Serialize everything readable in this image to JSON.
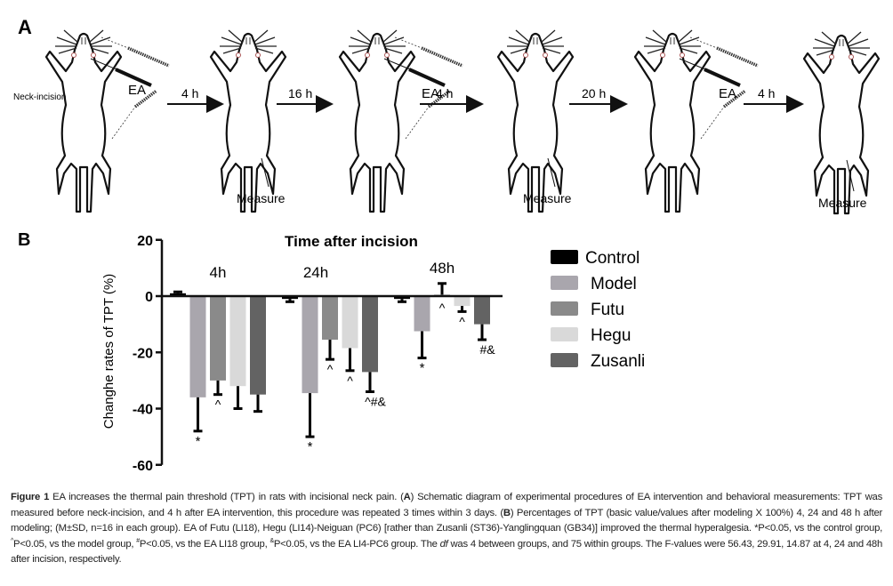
{
  "panel_a": {
    "label": "A",
    "neck_incision": "Neck-incision",
    "ea_label": "EA",
    "measure_label": "Measure",
    "arrows": [
      "4 h",
      "16 h",
      "4 h",
      "20 h",
      "4 h"
    ]
  },
  "panel_b_label": "B",
  "colors": {
    "Control": "#000000",
    "Model": "#a9a6ad",
    "Futu": "#8a8a8a",
    "Hegu": "#d9d9d9",
    "Zusanli": "#636363"
  },
  "chart_data": {
    "type": "bar",
    "title": "Time after incision",
    "ylabel": "Changhe rates of  TPT (%)",
    "xlabel": "",
    "ylim": [
      -60,
      20
    ],
    "yticks": [
      "20",
      "0",
      "-20",
      "-40",
      "-60"
    ],
    "ytick_values": [
      20,
      0,
      -20,
      -40,
      -60
    ],
    "categories": [
      "4h",
      "24h",
      "48h"
    ],
    "legend_position": "right",
    "series": [
      {
        "name": "Control",
        "values": [
          1,
          -1,
          -1
        ],
        "error_end": [
          1.5,
          -2,
          -2
        ],
        "annotations": [
          "",
          "",
          ""
        ]
      },
      {
        "name": "Model",
        "values": [
          -36,
          -34.5,
          -12.5
        ],
        "error_end": [
          -48,
          -50,
          -22
        ],
        "annotations": [
          "*",
          "*",
          "*"
        ]
      },
      {
        "name": "Futu",
        "values": [
          -30,
          -15.5,
          0.5
        ],
        "error_end": [
          -35,
          -22.5,
          4.5
        ],
        "annotations": [
          "^",
          "^",
          "^"
        ]
      },
      {
        "name": "Hegu",
        "values": [
          -32,
          -18.5,
          -3.5
        ],
        "error_end": [
          -40,
          -26.5,
          -5.5
        ],
        "annotations": [
          "",
          "^",
          "^"
        ]
      },
      {
        "name": "Zusanli",
        "values": [
          -35,
          -27,
          -10
        ],
        "error_end": [
          -41,
          -34,
          -15.5
        ],
        "annotations": [
          "",
          "^#&",
          "#&"
        ]
      }
    ]
  },
  "caption": {
    "label": "Figure 1",
    "t1": " EA increases the thermal pain threshold (TPT) in rats with incisional neck pain. (",
    "a": "A",
    "t2": ") Schematic diagram of experimental procedures of EA intervention and behavioral measurements: TPT was measured before neck-incision, and 4 h after EA intervention, this procedure was repeated 3 times within 3 days. (",
    "b": "B",
    "t3": ") Percentages of TPT (basic value/values after modeling X 100%) 4, 24 and 48 h after modeling; (M±SD, n=16 in each group). EA of Futu (LI18), Hegu (LI14)-Neiguan (PC6) [rather than Zusanli (ST36)-Yanglingquan (GB34)] improved the thermal hyperalgesia. *P<0.05, vs the control group, ",
    "s1": "^",
    "t4": "P<0.05, vs the model group, ",
    "s2": "#",
    "t5": "P<0.05, vs the EA LI18 group, ",
    "s3": "&",
    "t6": "P<0.05, vs the EA LI4-PC6 group. The ",
    "df": "df",
    "t7": " was 4 between groups, and 75 within groups. The F-values were 56.43, 29.91, 14.87 at 4, 24 and 48h after incision, respectively."
  }
}
